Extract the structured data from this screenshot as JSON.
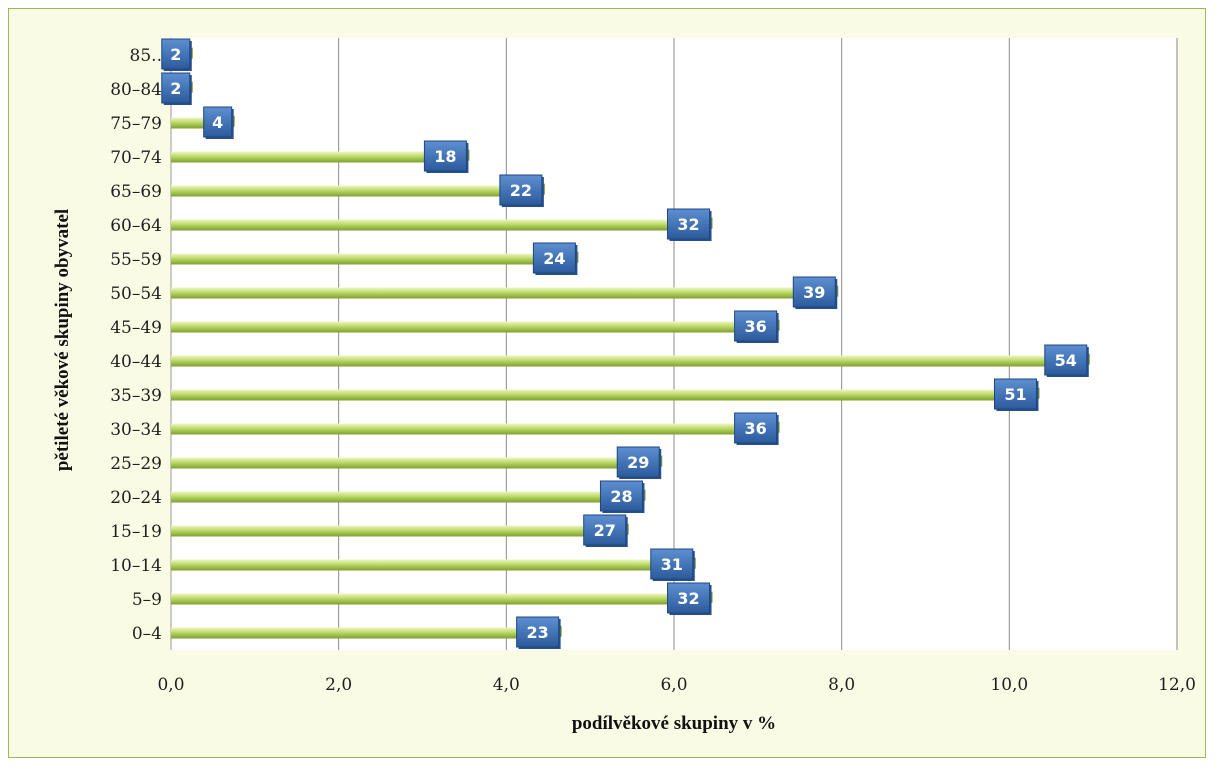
{
  "chart_data": {
    "type": "bar",
    "orientation": "horizontal",
    "categories": [
      "0–4",
      "5–9",
      "10–14",
      "15–19",
      "20–24",
      "25–29",
      "30–34",
      "35–39",
      "40–44",
      "45–49",
      "50–54",
      "55–59",
      "60–64",
      "65–69",
      "70–74",
      "75–79",
      "80–84",
      "85.."
    ],
    "series": [
      {
        "values": [
          4.6,
          6.4,
          6.2,
          5.4,
          5.6,
          5.8,
          7.2,
          10.3,
          10.9,
          7.2,
          7.9,
          4.8,
          6.4,
          4.4,
          3.5,
          0.7,
          0.2,
          0.2
        ],
        "labels": [
          "23",
          "32",
          "31",
          "27",
          "28",
          "29",
          "36",
          "51",
          "54",
          "36",
          "39",
          "24",
          "32",
          "22",
          "18",
          "4",
          "2",
          "2"
        ]
      }
    ],
    "xlabel": "podílvěkové skupiny v %",
    "ylabel": "pětileté věkové skupiny obyvatel",
    "xlim": [
      0,
      12
    ],
    "xticks": [
      "0,0",
      "2,0",
      "4,0",
      "6,0",
      "8,0",
      "10,0",
      "12,0"
    ],
    "grid": "vertical",
    "legend": "none",
    "colors": {
      "bar": "#b5d55e",
      "bar_dark": "#7c9e2e",
      "bar_light": "#e6f3b8",
      "label_box": "#3d6fb3",
      "label_box_dark": "#27508c",
      "gridline": "#8a8a8a",
      "frame_bg": "#fafbe4",
      "plot_bg": "#ffffff",
      "frame_border": "#98b954"
    }
  }
}
